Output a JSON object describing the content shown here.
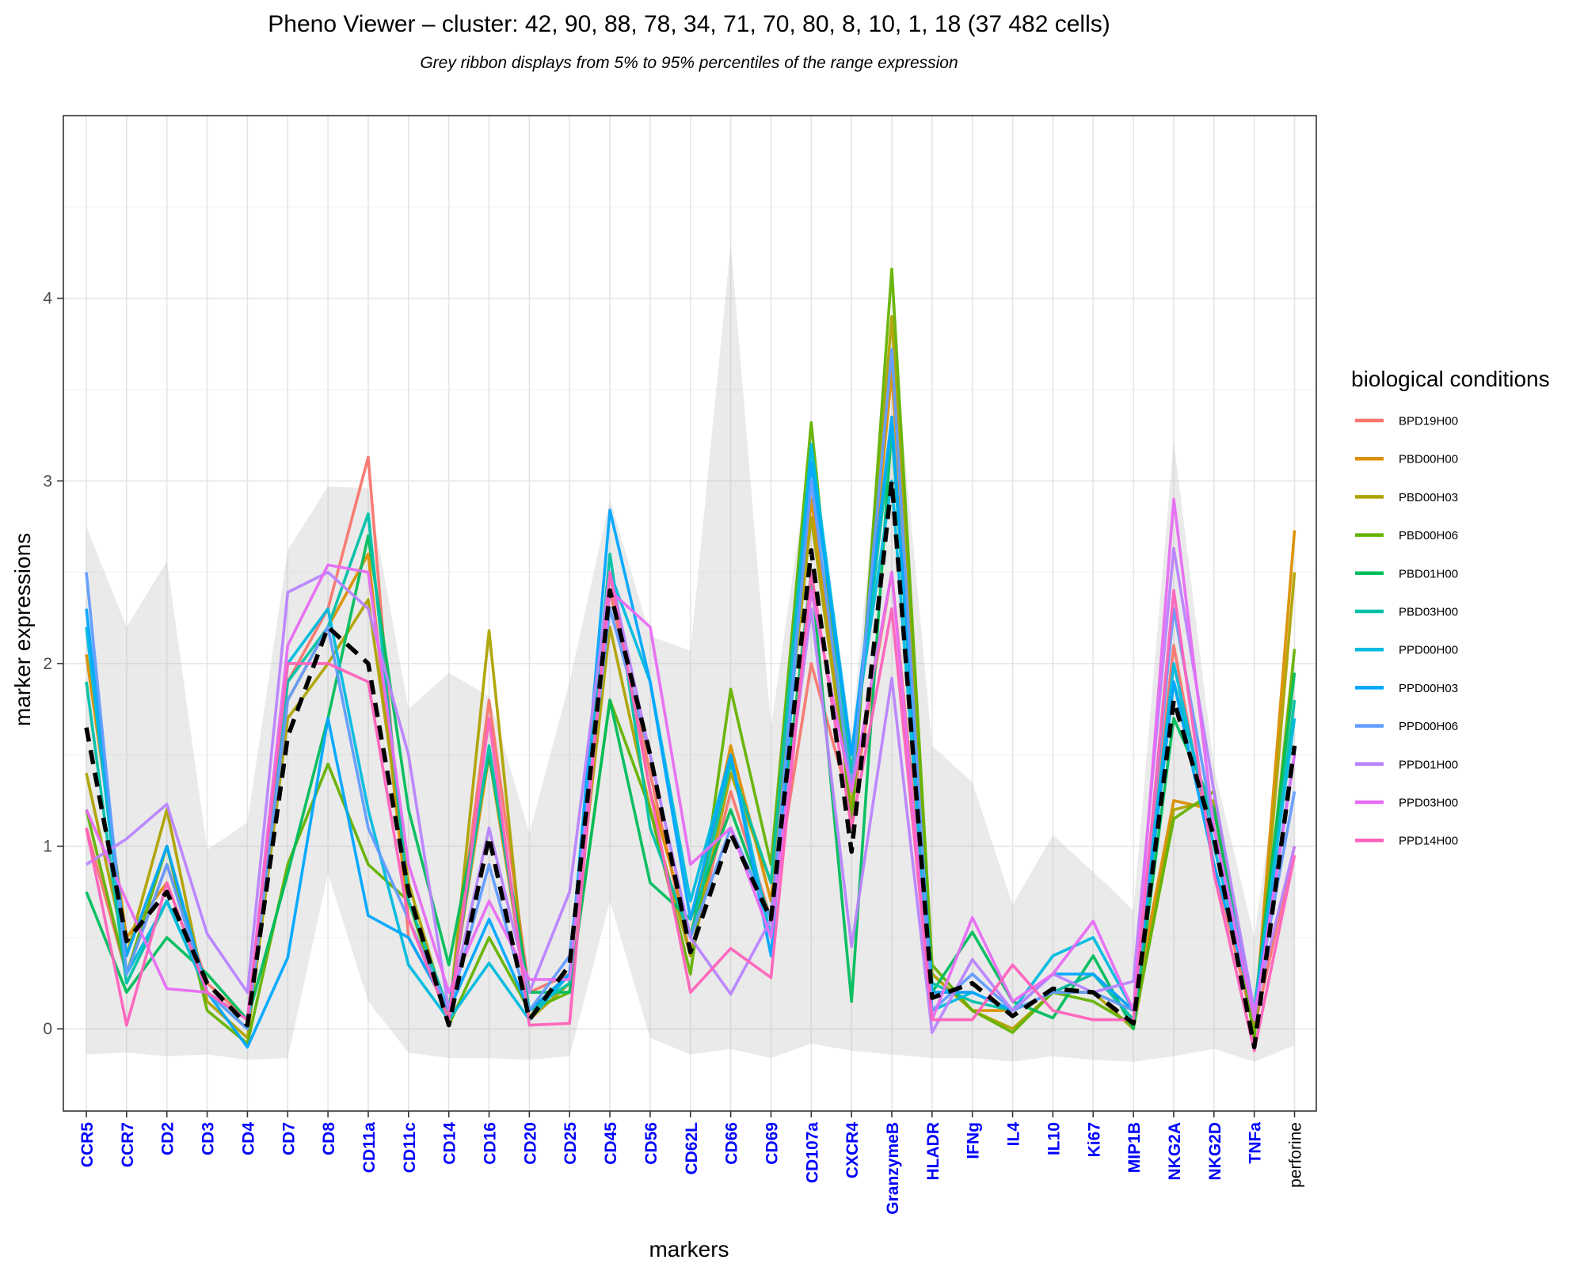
{
  "chart_data": {
    "type": "line",
    "title": "Pheno Viewer – cluster: 42, 90, 88, 78, 34, 71, 70, 80, 8, 10, 1, 18 (37 482 cells)",
    "subtitle": "Grey ribbon displays from 5% to 95% percentiles of the range expression",
    "xlabel": "markers",
    "ylabel": "marker expressions",
    "ylim": [
      -0.45,
      5.0
    ],
    "yticks": [
      0,
      1,
      2,
      3,
      4
    ],
    "grid": true,
    "legend_title": "biological conditions",
    "legend_position": "right",
    "categories": [
      "CCR5",
      "CCR7",
      "CD2",
      "CD3",
      "CD4",
      "CD7",
      "CD8",
      "CD11a",
      "CD11c",
      "CD14",
      "CD16",
      "CD20",
      "CD25",
      "CD45",
      "CD56",
      "CD62L",
      "CD66",
      "CD69",
      "CD107a",
      "CXCR4",
      "GranzymeB",
      "HLADR",
      "IFNg",
      "IL4",
      "IL10",
      "Ki67",
      "MIP1B",
      "NKG2A",
      "NKG2D",
      "TNFa",
      "perforine"
    ],
    "category_colors": [
      "#0000ff",
      "#0000ff",
      "#0000ff",
      "#0000ff",
      "#0000ff",
      "#0000ff",
      "#0000ff",
      "#0000ff",
      "#0000ff",
      "#0000ff",
      "#0000ff",
      "#0000ff",
      "#0000ff",
      "#0000ff",
      "#0000ff",
      "#0000ff",
      "#0000ff",
      "#0000ff",
      "#0000ff",
      "#0000ff",
      "#0000ff",
      "#0000ff",
      "#0000ff",
      "#0000ff",
      "#0000ff",
      "#0000ff",
      "#0000ff",
      "#0000ff",
      "#0000ff",
      "#0000ff",
      "#000000"
    ],
    "ribbon_lower": [
      -0.14,
      -0.13,
      -0.15,
      -0.14,
      -0.17,
      -0.16,
      0.85,
      0.15,
      -0.13,
      -0.16,
      -0.16,
      -0.17,
      -0.15,
      0.7,
      -0.05,
      -0.14,
      -0.11,
      -0.16,
      -0.08,
      -0.12,
      -0.14,
      -0.16,
      -0.16,
      -0.18,
      -0.15,
      -0.17,
      -0.18,
      -0.15,
      -0.11,
      -0.18,
      -0.09
    ],
    "ribbon_upper": [
      2.75,
      2.2,
      2.56,
      0.98,
      1.13,
      2.62,
      2.97,
      2.96,
      1.75,
      1.95,
      1.82,
      1.07,
      1.9,
      2.9,
      2.15,
      2.07,
      4.3,
      1.65,
      3.2,
      1.6,
      3.9,
      1.55,
      1.35,
      0.68,
      1.06,
      0.86,
      0.65,
      3.22,
      1.43,
      0.5,
      2.1
    ],
    "series": [
      {
        "name": "BPD19H00",
        "color": "#F8766D",
        "values": [
          1.1,
          0.3,
          0.9,
          0.25,
          0.05,
          1.9,
          2.3,
          3.13,
          0.5,
          0.1,
          1.8,
          0.2,
          0.3,
          2.4,
          1.4,
          0.4,
          1.3,
          0.6,
          2.0,
          1.2,
          2.5,
          0.2,
          0.2,
          0.1,
          0.2,
          0.3,
          0.1,
          2.1,
          0.9,
          0.0,
          1.0
        ]
      },
      {
        "name": "PBD00H00",
        "color": "#DB8E00",
        "values": [
          2.05,
          0.5,
          0.8,
          0.2,
          0.0,
          1.8,
          2.2,
          2.6,
          0.6,
          0.1,
          1.5,
          0.1,
          0.3,
          2.5,
          1.3,
          0.5,
          1.55,
          0.7,
          2.9,
          1.3,
          3.6,
          0.3,
          0.1,
          0.1,
          0.2,
          0.2,
          0.1,
          1.25,
          1.2,
          0.0,
          2.73
        ]
      },
      {
        "name": "PBD00H03",
        "color": "#AEA200",
        "values": [
          1.4,
          0.4,
          1.2,
          0.15,
          -0.05,
          1.7,
          2.0,
          2.35,
          0.8,
          0.05,
          2.18,
          0.05,
          0.25,
          2.2,
          1.2,
          0.4,
          1.4,
          0.8,
          2.8,
          1.2,
          3.9,
          0.3,
          0.1,
          0.0,
          0.2,
          0.2,
          0.0,
          1.2,
          1.25,
          -0.05,
          2.5
        ]
      },
      {
        "name": "PBD00H06",
        "color": "#64B200",
        "values": [
          1.2,
          0.3,
          1.0,
          0.1,
          -0.08,
          0.9,
          1.45,
          0.9,
          0.7,
          0.02,
          0.5,
          0.1,
          0.2,
          1.8,
          1.2,
          0.3,
          1.86,
          0.9,
          3.32,
          1.1,
          4.16,
          0.35,
          0.1,
          -0.02,
          0.2,
          0.15,
          0.02,
          1.15,
          1.3,
          -0.05,
          2.08
        ]
      },
      {
        "name": "PBD01H00",
        "color": "#00BD5C",
        "values": [
          0.75,
          0.2,
          0.5,
          0.3,
          0.05,
          0.85,
          1.7,
          2.7,
          1.2,
          0.35,
          1.5,
          0.2,
          0.2,
          1.8,
          0.8,
          0.6,
          1.2,
          0.6,
          2.5,
          0.15,
          3.3,
          0.2,
          0.53,
          0.15,
          0.06,
          0.4,
          0.0,
          1.7,
          1.2,
          0.1,
          1.95
        ]
      },
      {
        "name": "PBD03H00",
        "color": "#00C1A7",
        "values": [
          1.9,
          0.25,
          0.7,
          0.2,
          0.0,
          1.9,
          2.2,
          2.82,
          0.7,
          0.1,
          1.55,
          0.1,
          0.25,
          2.6,
          1.1,
          0.5,
          1.45,
          0.8,
          3.2,
          1.4,
          3.28,
          0.25,
          0.15,
          0.1,
          0.2,
          0.3,
          0.05,
          1.9,
          1.1,
          0.05,
          1.8
        ]
      },
      {
        "name": "PPD00H00",
        "color": "#00BADE",
        "values": [
          2.2,
          0.3,
          0.7,
          0.2,
          0.05,
          2.0,
          2.3,
          1.2,
          0.35,
          0.05,
          0.36,
          0.05,
          0.3,
          2.5,
          1.9,
          0.7,
          1.5,
          0.5,
          3.2,
          1.5,
          3.0,
          0.1,
          0.2,
          0.1,
          0.4,
          0.5,
          0.1,
          2.0,
          1.0,
          0.1,
          1.7
        ]
      },
      {
        "name": "PPD00H03",
        "color": "#00A6FF",
        "values": [
          2.3,
          0.4,
          1.0,
          0.2,
          -0.1,
          0.39,
          1.7,
          0.62,
          0.5,
          0.1,
          0.6,
          0.1,
          0.3,
          2.84,
          1.9,
          0.6,
          1.5,
          0.4,
          3.1,
          1.5,
          3.35,
          0.2,
          0.2,
          0.1,
          0.3,
          0.3,
          0.1,
          1.9,
          0.9,
          0.1,
          1.5
        ]
      },
      {
        "name": "PPD00H06",
        "color": "#619CFF",
        "values": [
          2.5,
          0.3,
          0.9,
          0.2,
          0.0,
          1.8,
          2.2,
          1.1,
          0.6,
          0.1,
          0.9,
          0.1,
          0.4,
          2.3,
          1.5,
          0.5,
          1.1,
          0.6,
          3.0,
          1.3,
          3.72,
          0.1,
          0.3,
          0.1,
          0.2,
          0.2,
          0.1,
          2.3,
          1.1,
          0.1,
          1.3
        ]
      },
      {
        "name": "PPD01H00",
        "color": "#B983FF",
        "values": [
          0.9,
          1.04,
          1.23,
          0.52,
          0.2,
          2.39,
          2.5,
          2.3,
          1.5,
          0.1,
          1.1,
          0.2,
          0.75,
          2.5,
          1.5,
          0.5,
          0.19,
          0.6,
          2.3,
          0.45,
          1.92,
          -0.02,
          0.38,
          0.1,
          0.3,
          0.2,
          0.26,
          2.63,
          1.3,
          0.1,
          1.0
        ]
      },
      {
        "name": "PPD03H00",
        "color": "#E76BF3",
        "values": [
          1.2,
          0.7,
          0.22,
          0.2,
          0.05,
          2.1,
          2.54,
          2.5,
          0.9,
          0.2,
          0.7,
          0.27,
          0.27,
          2.4,
          2.2,
          0.9,
          1.1,
          0.5,
          2.4,
          1.3,
          2.5,
          0.05,
          0.61,
          0.15,
          0.3,
          0.59,
          0.1,
          2.9,
          1.1,
          0.05,
          1.5
        ]
      },
      {
        "name": "PPD14H00",
        "color": "#FF62BC",
        "values": [
          1.1,
          0.02,
          0.8,
          0.2,
          0.05,
          2.0,
          2.0,
          1.9,
          0.6,
          0.05,
          1.7,
          0.02,
          0.03,
          2.5,
          1.3,
          0.2,
          0.44,
          0.28,
          2.5,
          1.1,
          2.3,
          0.05,
          0.05,
          0.35,
          0.1,
          0.05,
          0.05,
          2.4,
          0.85,
          -0.12,
          0.95
        ]
      }
    ],
    "overall": {
      "name": "",
      "style": "dashed",
      "color": "#000000",
      "values": [
        1.65,
        0.48,
        0.75,
        0.25,
        0.02,
        1.6,
        2.2,
        2.0,
        0.75,
        0.02,
        1.05,
        0.05,
        0.35,
        2.4,
        1.5,
        0.42,
        1.07,
        0.6,
        2.62,
        0.97,
        3.0,
        0.17,
        0.25,
        0.07,
        0.22,
        0.2,
        0.03,
        1.8,
        1.05,
        -0.1,
        1.55
      ]
    }
  }
}
